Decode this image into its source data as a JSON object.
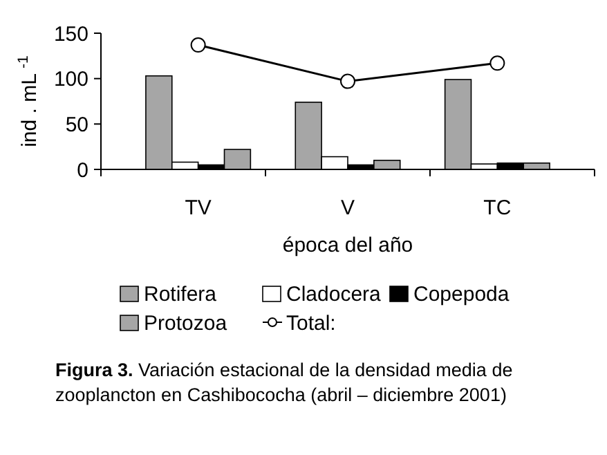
{
  "chart_data": {
    "type": "bar",
    "xlabel": "época del año",
    "ylabel": "ind . mL $^{-1}$",
    "categories": [
      "TV",
      "V",
      "TC"
    ],
    "series": [
      {
        "name": "Rotifera",
        "color": "#a6a6a6",
        "values": [
          103,
          74,
          99
        ]
      },
      {
        "name": "Cladocera",
        "color": "#ffffff",
        "values": [
          8,
          14,
          6
        ]
      },
      {
        "name": "Copepoda",
        "color": "#000000",
        "values": [
          5,
          5,
          7
        ]
      },
      {
        "name": "Protozoa",
        "color": "#a6a6a6",
        "values": [
          22,
          10,
          7
        ]
      },
      {
        "name": "Total:",
        "type": "line",
        "color": "#000000",
        "marker": "circle",
        "values": [
          137,
          97,
          117
        ]
      }
    ],
    "ylim": [
      0,
      150
    ],
    "yticks": [
      0,
      50,
      100,
      150
    ],
    "legend": "bottom",
    "annotations": [
      "Figura 3.",
      "Variación estacional de la densidad media de zooplancton en Cashibococha (abril – diciembre 2001)"
    ]
  }
}
